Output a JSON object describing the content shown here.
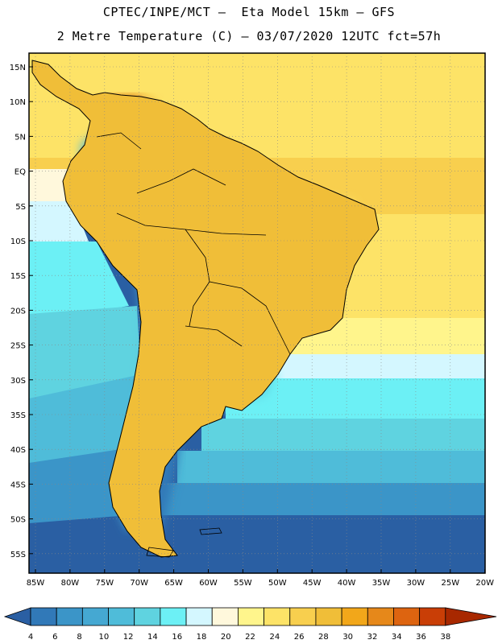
{
  "header": {
    "line1": "CPTEC/INPE/MCT –  Eta Model 15km – GFS",
    "line2": "2 Metre Temperature (C) – 03/07/2020 12UTC fct=57h"
  },
  "map": {
    "lat_labels": [
      "15N",
      "10N",
      "5N",
      "EQ",
      "5S",
      "10S",
      "15S",
      "20S",
      "25S",
      "30S",
      "35S",
      "40S",
      "45S",
      "50S",
      "55S"
    ],
    "lon_labels": [
      "85W",
      "80W",
      "75W",
      "70W",
      "65W",
      "60W",
      "55W",
      "50W",
      "45W",
      "40W",
      "35W",
      "30W",
      "25W",
      "20W"
    ]
  },
  "colorbar": {
    "labels": [
      "4",
      "6",
      "8",
      "10",
      "12",
      "14",
      "16",
      "18",
      "20",
      "22",
      "24",
      "26",
      "28",
      "30",
      "32",
      "34",
      "36",
      "38"
    ],
    "colors": [
      "#2a5fa3",
      "#3179b8",
      "#3b95c8",
      "#45a8d2",
      "#4fbcd9",
      "#5fd3e0",
      "#6cf0f5",
      "#d4f7ff",
      "#fff8dc",
      "#fff58c",
      "#fde367",
      "#f8cf4e",
      "#f0be38",
      "#f2a71a",
      "#e6881a",
      "#dd6410",
      "#c93e06",
      "#a82800"
    ]
  }
}
